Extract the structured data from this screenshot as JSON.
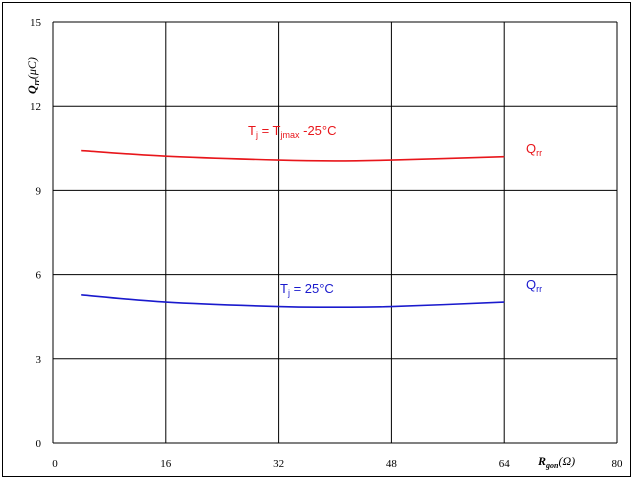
{
  "chart_data": {
    "type": "line",
    "title": "",
    "xlabel": {
      "main": "R",
      "sub": "gon",
      "unit": "(Ω)"
    },
    "ylabel": {
      "main": "Q",
      "sub": "rr",
      "unit": "(μC)"
    },
    "xlim": [
      0,
      80
    ],
    "ylim": [
      0,
      15
    ],
    "xticks": [
      0,
      16,
      32,
      48,
      64,
      80
    ],
    "yticks": [
      0,
      3,
      6,
      9,
      12,
      15
    ],
    "grid": true,
    "series": [
      {
        "name": "Qrr",
        "name_main": "Q",
        "name_sub": "rr",
        "color": "#e8161b",
        "condition": {
          "p1": "T",
          "s1": "j",
          "p2": " = T",
          "s2": "jmax",
          "p3": " -25°C"
        },
        "x": [
          4,
          16,
          32,
          40,
          48,
          64
        ],
        "y": [
          10.42,
          10.22,
          10.08,
          10.05,
          10.08,
          10.2
        ]
      },
      {
        "name": "Qrr",
        "name_main": "Q",
        "name_sub": "rr",
        "color": "#1a1acd",
        "condition": {
          "p1": "T",
          "s1": "j",
          "p2": " = 25°C"
        },
        "x": [
          4,
          16,
          32,
          40,
          48,
          64
        ],
        "y": [
          5.28,
          5.02,
          4.86,
          4.84,
          4.86,
          5.02
        ]
      }
    ]
  }
}
